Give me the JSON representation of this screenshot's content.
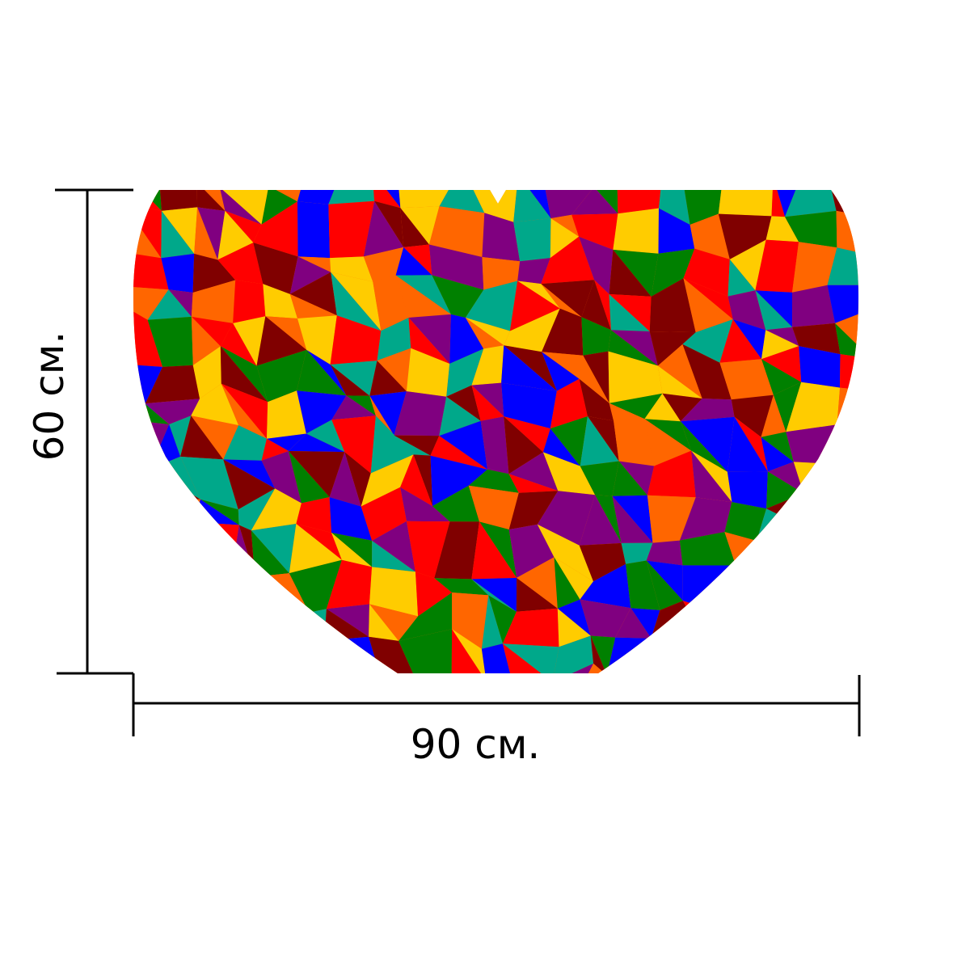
{
  "dimensions": {
    "height_label": "60 см.",
    "width_label": "90 см."
  },
  "product": {
    "shape": "heart",
    "pattern": "mosaic",
    "palette": [
      "#ff0000",
      "#0000ff",
      "#ffcc00",
      "#008000",
      "#ff6600",
      "#800080",
      "#00a88a",
      "#800000"
    ]
  }
}
